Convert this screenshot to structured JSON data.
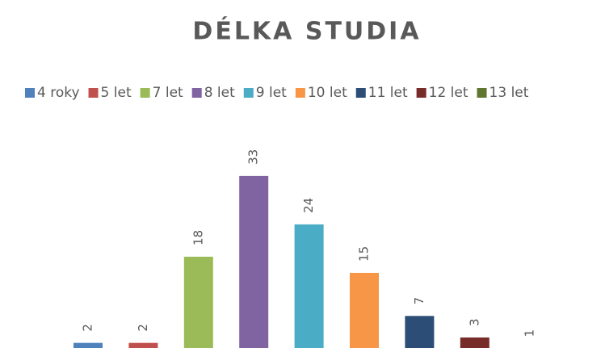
{
  "chart_data": {
    "type": "bar",
    "title": "DÉLKA STUDIA",
    "categories": [
      "4 roky",
      "5 let",
      "7 let",
      "8 let",
      "9 let",
      "10 let",
      "11 let",
      "12 let",
      "13 let"
    ],
    "values": [
      2,
      2,
      18,
      33,
      24,
      15,
      7,
      3,
      1
    ],
    "colors": [
      "#4f81bd",
      "#c0504d",
      "#9bbb59",
      "#8064a2",
      "#4bacc6",
      "#f79646",
      "#2c4d75",
      "#772c2a",
      "#5f7530"
    ],
    "legend": "top"
  }
}
